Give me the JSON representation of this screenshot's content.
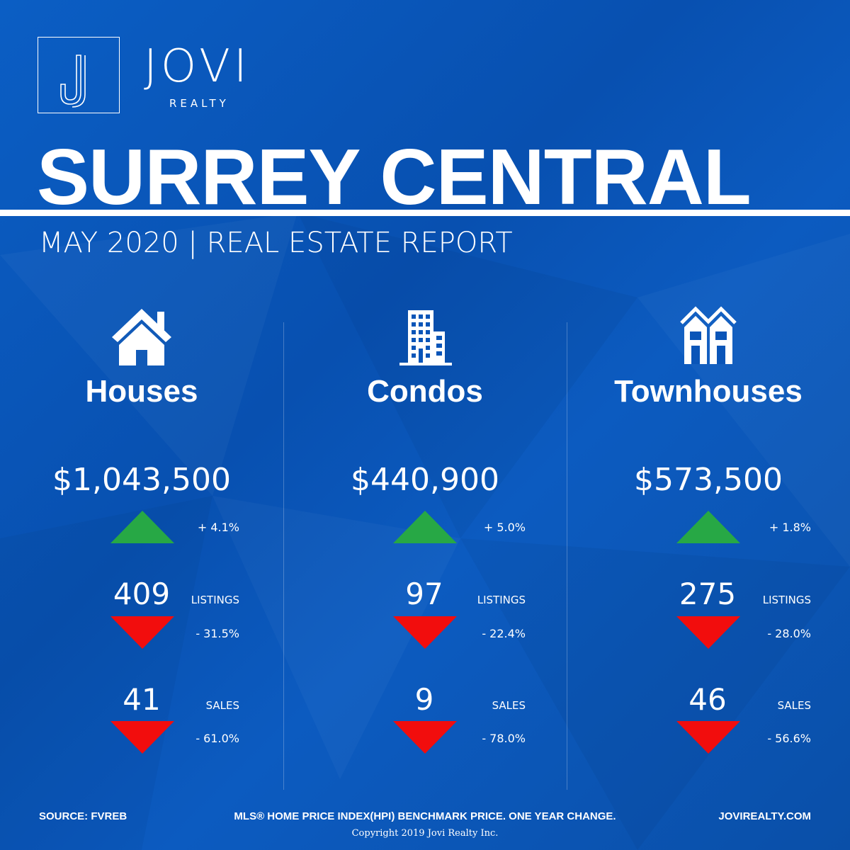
{
  "brand": {
    "logo_letter": "J",
    "name": "JOVI",
    "sub": "REALTY"
  },
  "title": "SURREY CENTRAL",
  "subtitle": "MAY 2020 | REAL ESTATE REPORT",
  "colors": {
    "background": "#0a55b8",
    "up": "#27a845",
    "down": "#f20d0d",
    "text": "#ffffff"
  },
  "columns": [
    {
      "icon": "house-icon",
      "heading": "Houses",
      "price": "$1,043,500",
      "price_change": "+ 4.1%",
      "price_trend": "up",
      "listings": "409",
      "listings_label": "LISTINGS",
      "listings_change": "- 31.5%",
      "listings_trend": "down",
      "sales": "41",
      "sales_label": "SALES",
      "sales_change": "- 61.0%",
      "sales_trend": "down"
    },
    {
      "icon": "condo-building-icon",
      "heading": "Condos",
      "price": "$440,900",
      "price_change": "+ 5.0%",
      "price_trend": "up",
      "listings": "97",
      "listings_label": "LISTINGS",
      "listings_change": "- 22.4%",
      "listings_trend": "down",
      "sales": "9",
      "sales_label": "SALES",
      "sales_change": "- 78.0%",
      "sales_trend": "down"
    },
    {
      "icon": "townhouse-icon",
      "heading": "Townhouses",
      "price": "$573,500",
      "price_change": "+ 1.8%",
      "price_trend": "up",
      "listings": "275",
      "listings_label": "LISTINGS",
      "listings_change": "- 28.0%",
      "listings_trend": "down",
      "sales": "46",
      "sales_label": "SALES",
      "sales_change": "- 56.6%",
      "sales_trend": "down"
    }
  ],
  "footer": {
    "source": "SOURCE:  FVREB",
    "note": "MLS® HOME PRICE INDEX(HPI) BENCHMARK PRICE. ONE YEAR CHANGE.",
    "website": "JOVIREALTY.COM",
    "copyright": "Copyright 2019 Jovi Realty Inc."
  }
}
